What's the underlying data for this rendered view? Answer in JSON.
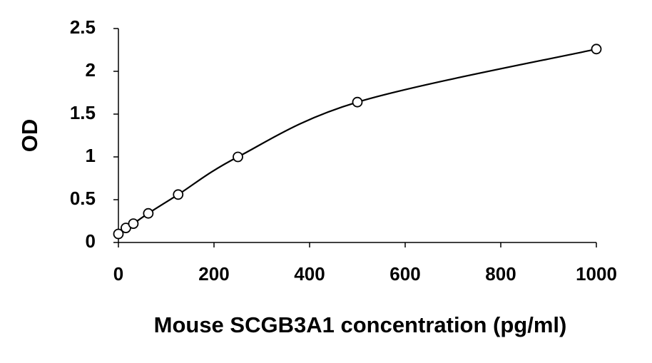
{
  "chart_data": {
    "type": "scatter",
    "x_label": "Mouse SCGB3A1 concentration (pg/ml)",
    "y_label": "OD",
    "x": [
      0,
      15.6,
      31.25,
      62.5,
      125,
      250,
      500,
      1000
    ],
    "values": [
      0.1,
      0.17,
      0.22,
      0.34,
      0.56,
      1.0,
      1.64,
      2.26
    ],
    "color": "#000000",
    "curve": "smooth",
    "xlim": [
      0,
      1000
    ],
    "xticks": [
      0,
      200,
      400,
      600,
      800,
      1000
    ],
    "ylim": [
      0,
      2.5
    ],
    "yticks": [
      0,
      0.5,
      1,
      1.5,
      2,
      2.5
    ],
    "grid": false
  }
}
